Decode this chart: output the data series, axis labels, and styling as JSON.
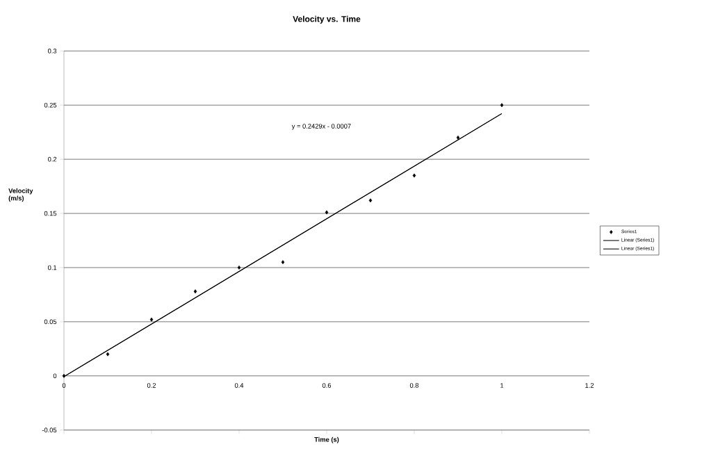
{
  "chart_data": {
    "type": "scatter",
    "title": "Velocity vs. Time",
    "xlabel": "Time (s)",
    "ylabel": "Velocity\n(m/s)",
    "xlim": [
      0,
      1.2
    ],
    "xticks": [
      0,
      0.2,
      0.4,
      0.6,
      0.8,
      1,
      1.2
    ],
    "ylim": [
      -0.05,
      0.3
    ],
    "yticks": [
      -0.05,
      0,
      0.05,
      0.1,
      0.15,
      0.2,
      0.25,
      0.3
    ],
    "grid": "y",
    "legend": "right",
    "annotations": [
      "y = 0.2429x - 0.0007"
    ],
    "series": [
      {
        "name": "Series1",
        "marker": "diamond",
        "color": "#000000",
        "x": [
          0,
          0.1,
          0.2,
          0.3,
          0.4,
          0.5,
          0.6,
          0.7,
          0.8,
          0.9,
          1.0
        ],
        "values": [
          0,
          0.02,
          0.052,
          0.078,
          0.1,
          0.105,
          0.151,
          0.162,
          0.185,
          0.22,
          0.25
        ]
      },
      {
        "name": "Linear (Series1)",
        "type": "line",
        "marker": "none",
        "color": "#000000",
        "x": [
          0,
          1.0
        ],
        "values": [
          -0.0007,
          0.2422
        ]
      },
      {
        "name": "Linear (Series1)",
        "type": "line",
        "marker": "none",
        "color": "#000000",
        "x": [
          0,
          1.0
        ],
        "values": [
          -0.0007,
          0.2422
        ]
      }
    ]
  }
}
